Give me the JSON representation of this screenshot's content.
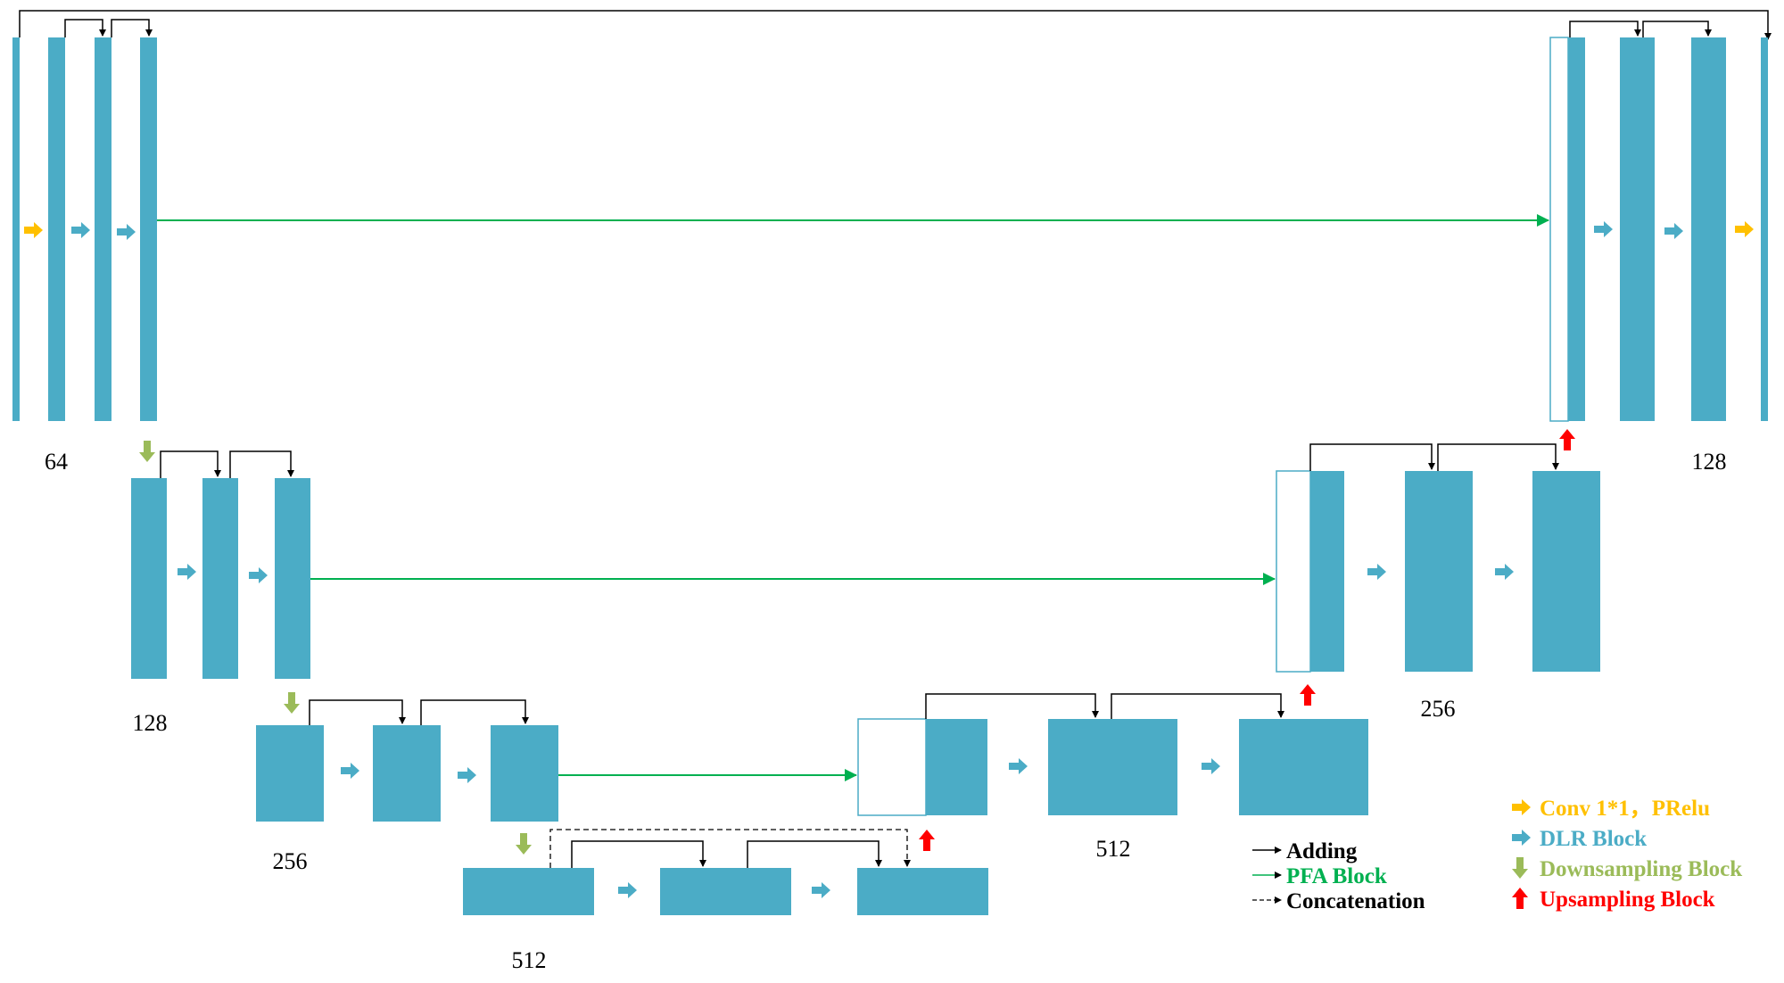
{
  "colors": {
    "block": "#4BACC6",
    "conv": "#FFC000",
    "dlr": "#4BACC6",
    "downsample": "#9BBB59",
    "upsample": "#FF0000",
    "pfa": "#00B050",
    "adding": "#000000"
  },
  "channel_labels": {
    "enc1": "64",
    "enc2": "128",
    "enc3": "256",
    "bottleneck": "512",
    "dec3": "512",
    "dec2": "256",
    "dec1": "128"
  },
  "legend_left": {
    "adding": "Adding",
    "pfa": "PFA Block",
    "concat": "Concatenation"
  },
  "legend_right": {
    "conv": "Conv 1*1，PRelu",
    "dlr": "DLR Block",
    "down": "Downsampling Block",
    "up": "Upsampling Block"
  },
  "icons": {
    "conv": "right-arrow-icon",
    "dlr": "right-arrow-icon",
    "down": "down-arrow-icon",
    "up": "up-arrow-icon"
  }
}
